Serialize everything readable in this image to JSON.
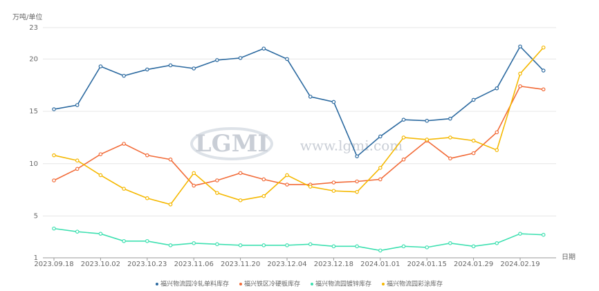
{
  "chart_data": {
    "type": "line",
    "y_axis_label": "万吨/单位",
    "x_axis_label": "日期",
    "watermark": {
      "logo": "LGMI",
      "url": "www.lgmi.com"
    },
    "categories": [
      "2023.09.18",
      null,
      "2023.10.02",
      null,
      "2023.10.23",
      null,
      "2023.11.06",
      null,
      "2023.11.20",
      null,
      "2023.12.04",
      null,
      "2023.12.18",
      null,
      "2024.01.01",
      null,
      "2024.01.15",
      null,
      "2024.01.29",
      null,
      "2024.02.19",
      null
    ],
    "ylim": [
      1,
      23
    ],
    "yticks": [
      1,
      5,
      10,
      15,
      20,
      23
    ],
    "grid": true,
    "legend": "bottom",
    "series": [
      {
        "name": "福兴物流园冷轧单料库存",
        "color": "#2c6aa0",
        "values": [
          15.2,
          15.6,
          19.3,
          18.4,
          19.0,
          19.4,
          19.1,
          19.9,
          20.1,
          21.0,
          20.0,
          16.4,
          15.9,
          10.7,
          12.6,
          14.2,
          14.1,
          14.3,
          16.1,
          17.2,
          21.2,
          18.9
        ]
      },
      {
        "name": "福兴铁区冷硬板库存",
        "color": "#f26b38",
        "values": [
          8.4,
          9.5,
          10.9,
          11.9,
          10.8,
          10.4,
          7.9,
          8.4,
          9.1,
          8.5,
          8.0,
          8.0,
          8.2,
          8.3,
          8.5,
          10.4,
          12.2,
          10.5,
          11.0,
          13.0,
          17.4,
          17.1
        ]
      },
      {
        "name": "福兴物流园镀锌库存",
        "color": "#3de0b0",
        "values": [
          3.8,
          3.5,
          3.3,
          2.6,
          2.6,
          2.2,
          2.4,
          2.3,
          2.2,
          2.2,
          2.2,
          2.3,
          2.1,
          2.1,
          1.7,
          2.1,
          2.0,
          2.4,
          2.1,
          2.4,
          3.3,
          3.2
        ]
      },
      {
        "name": "福兴物流园彩涂库存",
        "color": "#f5b800",
        "values": [
          10.8,
          10.3,
          8.9,
          7.6,
          6.7,
          6.1,
          9.1,
          7.2,
          6.5,
          6.9,
          8.9,
          7.8,
          7.4,
          7.3,
          9.6,
          12.5,
          12.3,
          12.5,
          12.2,
          11.3,
          18.6,
          21.1
        ]
      }
    ]
  }
}
